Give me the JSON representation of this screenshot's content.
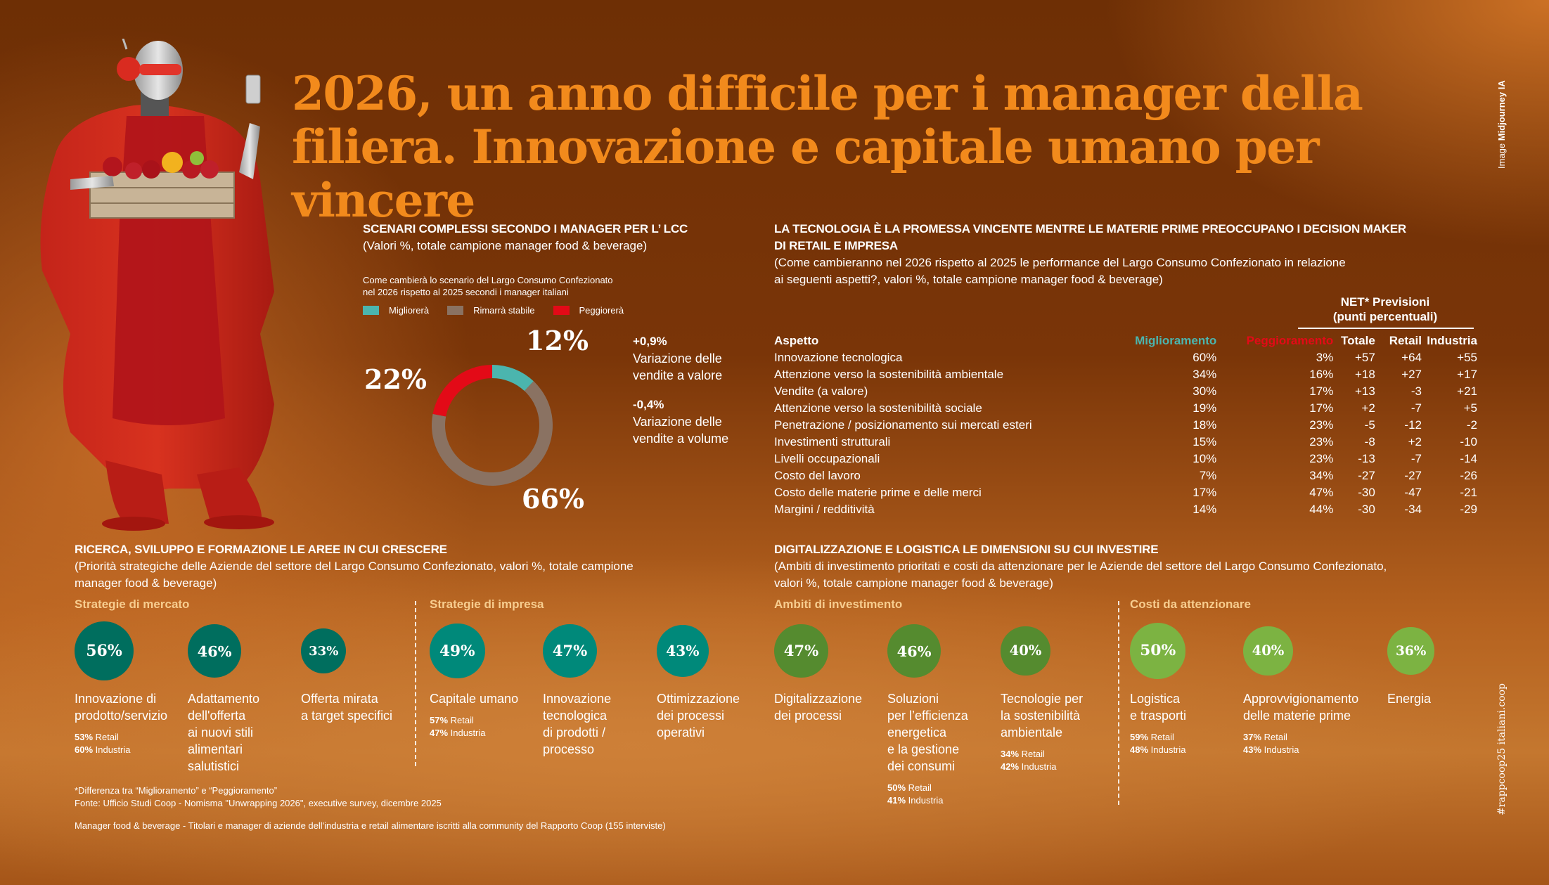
{
  "title": {
    "line1": "2026, un anno difficile per i manager della",
    "line2": "filiera. Innovazione e capitale umano per vincere",
    "color": "#f28a1c"
  },
  "credit": {
    "prefix": "Image",
    "name": "Midjourney IA"
  },
  "hashtag": "#rappcoop25 italiani.coop",
  "hero": {
    "description": "Robot in red clothes with red headphones and sunglasses holding a crate of apples and a smartphone"
  },
  "scenari": {
    "title": "SCENARI COMPLESSI SECONDO I MANAGER PER L’ LCC",
    "subtitle": "(Valori %, totale campione manager food & beverage)",
    "note_line1": "Come cambierà lo scenario del Largo Consumo Confezionato",
    "note_line2": "nel 2026 rispetto al 2025 secondi i manager italiani",
    "kpis": [
      {
        "value": "+0,9%",
        "line1": "Variazione delle",
        "line2": "vendite a valore"
      },
      {
        "value": "-0,4%",
        "line1": "Variazione delle",
        "line2": "vendite a volume"
      }
    ]
  },
  "tecnologia": {
    "title_line1": "LA TECNOLOGIA È LA PROMESSA VINCENTE MENTRE LE MATERIE PRIME PREOCCUPANO I DECISION MAKER",
    "title_line2": "DI RETAIL E IMPRESA",
    "subtitle_line1": "(Come cambieranno nel 2026 rispetto al 2025 le performance del Largo Consumo Confezionato in relazione",
    "subtitle_line2": "ai seguenti aspetti?, valori %, totale campione manager food & beverage)",
    "net_header_line1": "NET* Previsioni",
    "net_header_line2": "(punti percentuali)"
  },
  "ricerca": {
    "title": "RICERCA, SVILUPPO E FORMAZIONE LE AREE IN CUI CRESCERE",
    "subtitle_line1": "(Priorità strategiche delle Aziende del settore del Largo Consumo Confezionato, valori %, totale campione",
    "subtitle_line2": "manager food & beverage)",
    "groups": [
      {
        "label": "Strategie di mercato"
      },
      {
        "label": "Strategie di impresa"
      }
    ]
  },
  "digitalizzazione": {
    "title": "DIGITALIZZAZIONE E LOGISTICA LE DIMENSIONI SU CUI INVESTIRE",
    "subtitle_line1": "(Ambiti di investimento prioritati e costi da attenzionare per le Aziende del settore del Largo Consumo Confezionato,",
    "subtitle_line2": "valori %, totale campione manager food & beverage)",
    "groups": [
      {
        "label": "Ambiti di investimento"
      },
      {
        "label": "Costi da attenzionare"
      }
    ]
  },
  "footnotes": {
    "line1": "*Differenza tra “Miglioramento” e “Peggioramento”",
    "line2": "Fonte: Ufficio Studi Coop - Nomisma \"Unwrapping 2026\", executive survey, dicembre 2025",
    "line3": "Manager food & beverage -  Titolari e manager di aziende dell'industria e retail alimentare iscritti alla community del Rapporto Coop (155 interviste)"
  },
  "chart_data": [
    {
      "type": "pie",
      "variant": "donut",
      "title": "Come cambierà lo scenario del Largo Consumo Confezionato nel 2026 rispetto al 2025 secondi i manager italiani",
      "categories": [
        "Migliorerà",
        "Rimarrà stabile",
        "Peggiorerà"
      ],
      "values": [
        12,
        66,
        22
      ],
      "labels": [
        "12%",
        "66%",
        "22%"
      ],
      "colors": [
        "#4bb5ae",
        "#8a7262",
        "#e30a17"
      ],
      "legend": "top"
    },
    {
      "type": "table",
      "title": "Performance LCC 2026 vs 2025",
      "columns": [
        "Aspetto",
        "Miglioramento",
        "Peggioramento",
        "Totale",
        "Retail",
        "Industria"
      ],
      "column_colors": {
        "Miglioramento": "#4bb5ae",
        "Peggioramento": "#e30a17"
      },
      "rows": [
        [
          "Innovazione tecnologica",
          "60%",
          "3%",
          "+57",
          "+64",
          "+55"
        ],
        [
          "Attenzione verso la sostenibilità ambientale",
          "34%",
          "16%",
          "+18",
          "+27",
          "+17"
        ],
        [
          "Vendite (a valore)",
          "30%",
          "17%",
          "+13",
          "-3",
          "+21"
        ],
        [
          "Attenzione verso la sostenibilità sociale",
          "19%",
          "17%",
          "+2",
          "-7",
          "+5"
        ],
        [
          "Penetrazione / posizionamento sui mercati esteri",
          "18%",
          "23%",
          "-5",
          "-12",
          "-2"
        ],
        [
          "Investimenti strutturali",
          "15%",
          "23%",
          "-8",
          "+2",
          "-10"
        ],
        [
          "Livelli occupazionali",
          "10%",
          "23%",
          "-13",
          "-7",
          "-14"
        ],
        [
          "Costo del lavoro",
          "7%",
          "34%",
          "-27",
          "-27",
          "-26"
        ],
        [
          "Costo delle materie prime e delle merci",
          "17%",
          "47%",
          "-30",
          "-47",
          "-21"
        ],
        [
          "Margini / redditività",
          "14%",
          "44%",
          "-30",
          "-34",
          "-29"
        ]
      ]
    },
    {
      "type": "scatter",
      "variant": "bubble",
      "title": "Ricerca, sviluppo e formazione - priorità strategiche",
      "series": [
        {
          "name": "Strategie di mercato",
          "color": "#006e5e",
          "points": [
            {
              "label": "Innovazione di prodotto/servizio",
              "value": 56,
              "retail": 53,
              "industria": 60
            },
            {
              "label": "Adattamento dell'offerta ai nuovi stili alimentari salutistici",
              "value": 46
            },
            {
              "label": "Offerta mirata a target specifici",
              "value": 33
            }
          ]
        },
        {
          "name": "Strategie di impresa",
          "color": "#00897a",
          "points": [
            {
              "label": "Capitale umano",
              "value": 49,
              "retail": 57,
              "industria": 47
            },
            {
              "label": "Innovazione tecnologica di prodotti / processo",
              "value": 47
            },
            {
              "label": "Ottimizzazione dei processi operativi",
              "value": 43
            }
          ]
        }
      ]
    },
    {
      "type": "scatter",
      "variant": "bubble",
      "title": "Digitalizzazione e logistica - ambiti di investimento e costi",
      "series": [
        {
          "name": "Ambiti di investimento",
          "color": "#558b2f",
          "points": [
            {
              "label": "Digitalizzazione dei processi",
              "value": 47
            },
            {
              "label": "Soluzioni per l’efficienza energetica e la gestione dei consumi",
              "value": 46,
              "retail": 50,
              "industria": 41
            },
            {
              "label": "Tecnologie per la sostenibilità ambientale",
              "value": 40,
              "retail": 34,
              "industria": 42
            }
          ]
        },
        {
          "name": "Costi da attenzionare",
          "color": "#7cb342",
          "points": [
            {
              "label": "Logistica e trasporti",
              "value": 50,
              "retail": 59,
              "industria": 48
            },
            {
              "label": "Approvvigionamento delle materie prime",
              "value": 40,
              "retail": 37,
              "industria": 43
            },
            {
              "label": "Energia",
              "value": 36
            }
          ]
        }
      ]
    }
  ],
  "bubble_display": {
    "s3": [
      [
        "Innovazione di",
        "prodotto/servizio"
      ],
      [
        "Adattamento",
        "dell'offerta",
        "ai nuovi stili",
        "alimentari",
        "salutistici"
      ],
      [
        "Offerta mirata",
        "a target specifici"
      ],
      [
        "Capitale umano"
      ],
      [
        "Innovazione",
        "tecnologica",
        "di prodotti /",
        "processo"
      ],
      [
        "Ottimizzazione",
        "dei processi",
        "operativi"
      ]
    ],
    "s4": [
      [
        "Digitalizzazione",
        "dei processi"
      ],
      [
        "Soluzioni",
        "per l’efficienza",
        "energetica",
        "e la gestione",
        "dei consumi"
      ],
      [
        "Tecnologie per",
        "la sostenibilità",
        "ambientale"
      ],
      [
        "Logistica",
        "e trasporti"
      ],
      [
        "Approvvigionamento",
        "delle materie prime"
      ],
      [
        "Energia"
      ]
    ],
    "retail_word": "Retail",
    "industria_word": "Industria"
  }
}
